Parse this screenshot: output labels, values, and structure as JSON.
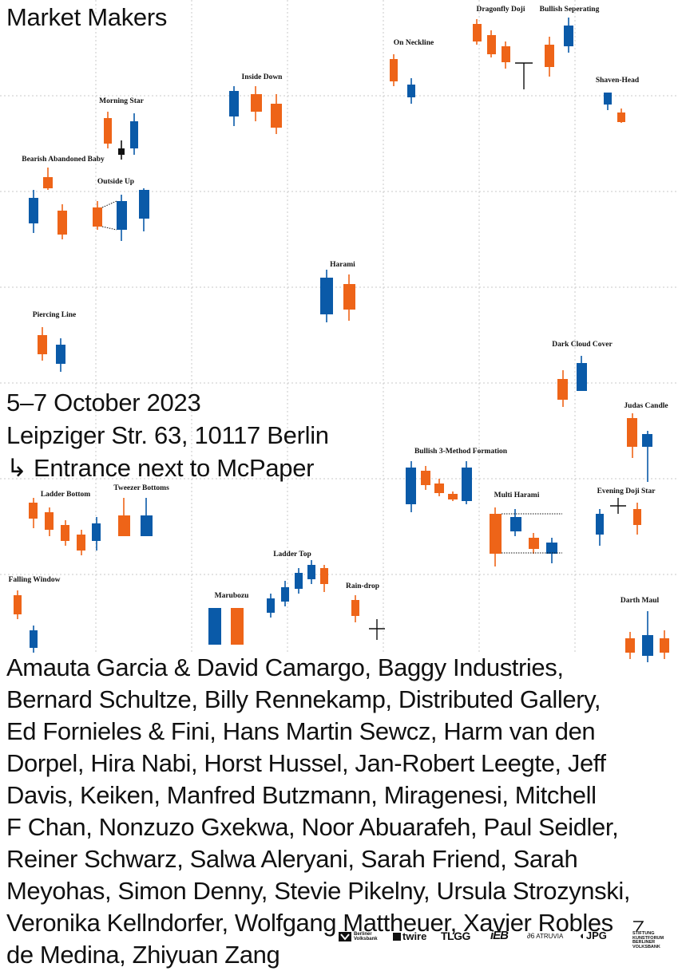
{
  "poster": {
    "title": "Market Makers",
    "dates": "5–7 October 2023",
    "address": "Leipziger Str. 63, 10117 Berlin",
    "entrance": "↳ Entrance next to McPaper",
    "artists_lines": [
      "Amauta Garcia & David Camargo, Baggy Industries,",
      "Bernard Schultze, Billy Rennekamp, Distributed Gallery,",
      "Ed Fornieles & Fini, Hans Martin Sewcz, Harm van den",
      "Dorpel, Hira Nabi, Horst Hussel, Jan-Robert Leegte, Jeff",
      "Davis, Keiken, Manfred Butzmann, Miragenesi, Mitchell",
      "F Chan, Nonzuzo Gxekwa, Noor Abuarafeh, Paul Seidler,",
      "Reiner Schwarz, Salwa Aleryani, Sarah Friend, Sarah",
      "Meyohas, Simon Denny, Stevie Pikelny, Ursula Strozynski,",
      "Veronika Kellndorfer, Wolfgang Mattheuer, Xavier Robles",
      "de Medina, Zhiyuan Zang"
    ]
  },
  "patterns": {
    "morning_star": "Morning Star",
    "bearish_abandoned_baby": "Bearish Abandoned Baby",
    "outside_up": "Outside Up",
    "inside_down": "Inside Down",
    "on_neckline": "On Neckline",
    "dragonfly_doji": "Dragonfly Doji",
    "bullish_seperating": "Bullish Seperating",
    "shaven_head": "Shaven-Head",
    "harami": "Harami",
    "piercing_line": "Piercing Line",
    "dark_cloud_cover": "Dark Cloud Cover",
    "judas_candle": "Judas Candle",
    "bullish_3_method": "Bullish 3-Method Formation",
    "multi_harami": "Multi Harami",
    "evening_doji_star": "Evening Doji Star",
    "ladder_bottom": "Ladder Bottom",
    "tweezer_bottoms": "Tweezer Bottoms",
    "ladder_top": "Ladder Top",
    "falling_window": "Falling Window",
    "marubozu": "Marubozu",
    "rain_drop": "Rain-drop",
    "darth_maul": "Darth Maul"
  },
  "sponsors": {
    "berliner_volksbank_1": "Berliner",
    "berliner_volksbank_2": "Volksbank",
    "twire": "twire",
    "tlgg": "TLGG",
    "ieb": "iEB",
    "atruvia": "ATRUVIA",
    "jpg": "JPG",
    "stiftung_1": "STIFTUNG",
    "stiftung_2": "KUNSTFORUM",
    "stiftung_3": "BERLINER",
    "stiftung_4": "VOLKSBANK"
  },
  "colors": {
    "orange": "#ee6418",
    "blue": "#0a5aa8",
    "black": "#111111",
    "grid": "#c8c8c8"
  }
}
